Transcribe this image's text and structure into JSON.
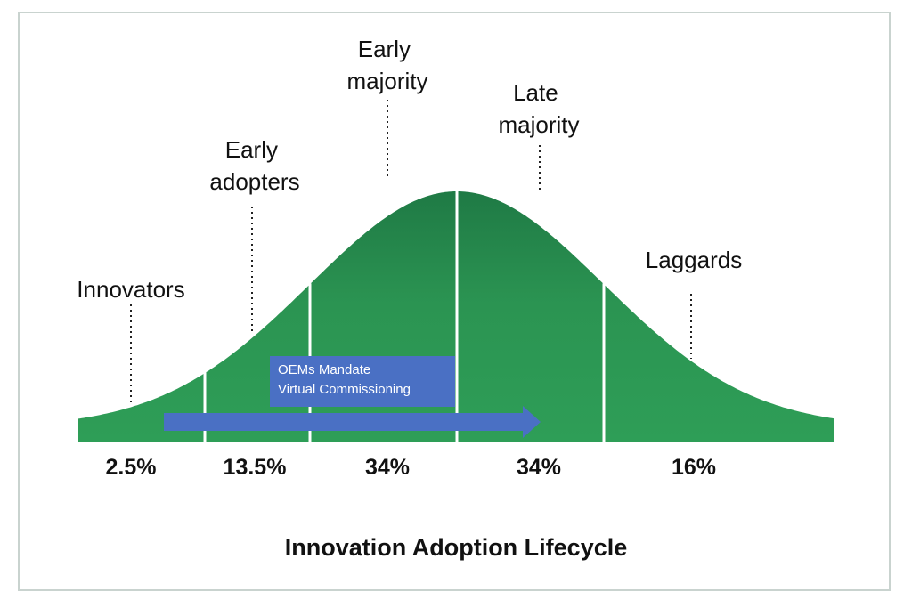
{
  "segments": [
    {
      "label_lines": [
        "Innovators"
      ],
      "percent": "2.5%"
    },
    {
      "label_lines": [
        "Early",
        "adopters"
      ],
      "percent": "13.5%"
    },
    {
      "label_lines": [
        "Early",
        "majority"
      ],
      "percent": "34%"
    },
    {
      "label_lines": [
        "Late",
        "majority"
      ],
      "percent": "34%"
    },
    {
      "label_lines": [
        "Laggards"
      ],
      "percent": "16%"
    }
  ],
  "callout": {
    "line1": "OEMs Mandate",
    "line2": "Virtual Commissioning"
  },
  "title": "Innovation Adoption Lifecycle",
  "colors": {
    "curve_dark": "#1f7a45",
    "curve_light": "#2e9e57",
    "arrow": "#4a70c4",
    "divider": "#ffffff"
  }
}
